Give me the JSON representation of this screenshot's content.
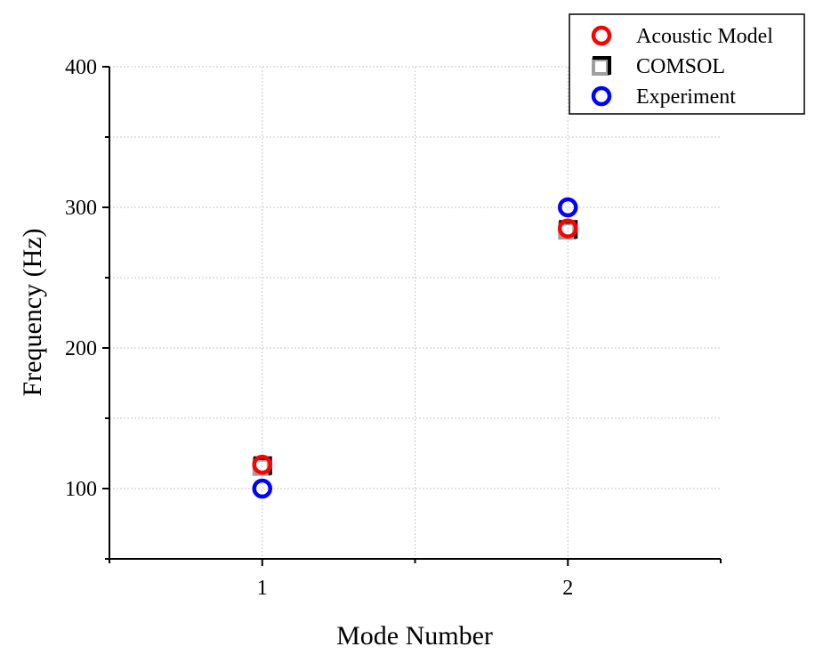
{
  "chart_data": {
    "type": "scatter",
    "title": "",
    "xlabel": "Mode Number",
    "ylabel": "Frequency (Hz)",
    "xlim": [
      0.5,
      2.5
    ],
    "ylim": [
      50,
      400
    ],
    "x_ticks": [
      1,
      2
    ],
    "y_ticks": [
      100,
      200,
      300,
      400
    ],
    "grid": true,
    "legend_position": "top-right",
    "series": [
      {
        "name": "Acoustic Model",
        "marker": "circle",
        "color": "#ff0000",
        "x": [
          1,
          2
        ],
        "y": [
          117,
          285
        ]
      },
      {
        "name": "COMSOL",
        "marker": "square",
        "color": "#000000",
        "secondary_color": "#a0a0a0",
        "x": [
          1,
          2
        ],
        "y": [
          116,
          284
        ]
      },
      {
        "name": "Experiment",
        "marker": "circle",
        "color": "#0000ff",
        "x": [
          1,
          2
        ],
        "y": [
          100,
          300
        ]
      }
    ]
  }
}
